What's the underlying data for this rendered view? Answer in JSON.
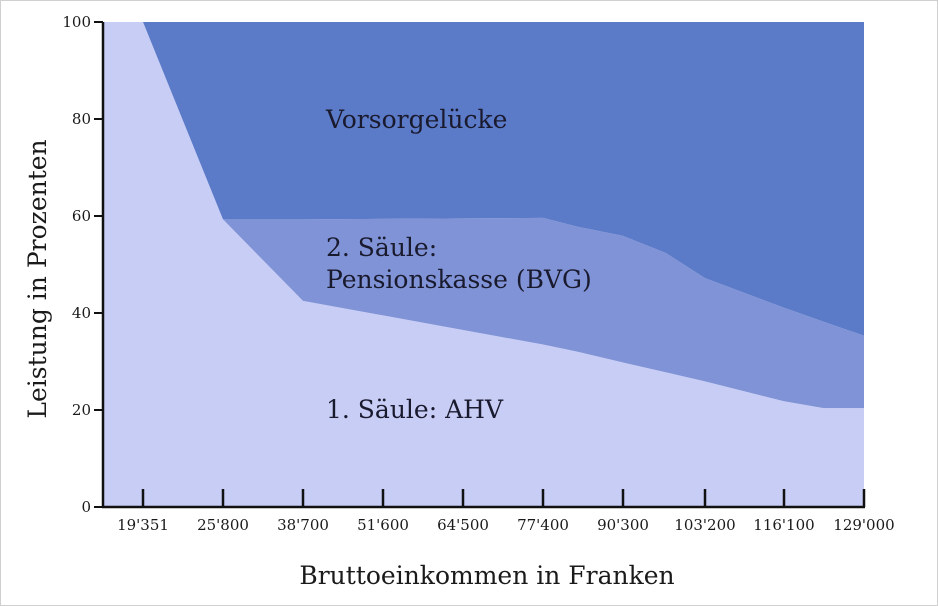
{
  "chart_data": {
    "type": "area",
    "stacked": true,
    "xlabel": "Bruttoeinkommen in Franken",
    "ylabel": "Leistung in Prozenten",
    "ylim": [
      0,
      100
    ],
    "y_ticks": [
      0,
      20,
      40,
      60,
      80,
      100
    ],
    "x_ticks": [
      "19'351",
      "25'800",
      "38'700",
      "51'600",
      "64'500",
      "77'400",
      "90'300",
      "103'200",
      "116'100",
      "129'000"
    ],
    "x": [
      12000,
      19351,
      25800,
      38700,
      51600,
      64500,
      77400,
      83000,
      90300,
      97000,
      103200,
      116100,
      122500,
      129000
    ],
    "xlim": [
      12500,
      129000
    ],
    "series": [
      {
        "name": "1. Säule: AHV",
        "color": "#c8cdf5",
        "values": [
          100,
          100,
          59.3,
          42.5,
          39.5,
          36.5,
          33.5,
          32,
          29.8,
          27.8,
          25.9,
          21.8,
          20.4,
          20.4
        ]
      },
      {
        "name": "2. Säule:\nPensionskasse (BVG)",
        "color": "#7f93d6",
        "values": [
          0,
          0,
          0,
          16.8,
          19.9,
          23,
          26.1,
          25.8,
          26.1,
          24.6,
          21.3,
          19.3,
          17.8,
          14.9
        ]
      },
      {
        "name": "Vorsorgelücke",
        "color": "#5b7ac8",
        "values": [
          0,
          0,
          40.7,
          40.7,
          40.6,
          40.5,
          40.4,
          42.2,
          44.1,
          47.6,
          52.8,
          58.9,
          61.8,
          64.7
        ]
      }
    ]
  },
  "labels": {
    "vorsorge": "Vorsorgelücke",
    "bvg_line1": "2. Säule:",
    "bvg_line2": "Pensionskasse (BVG)",
    "ahv": "1. Säule: AHV"
  }
}
